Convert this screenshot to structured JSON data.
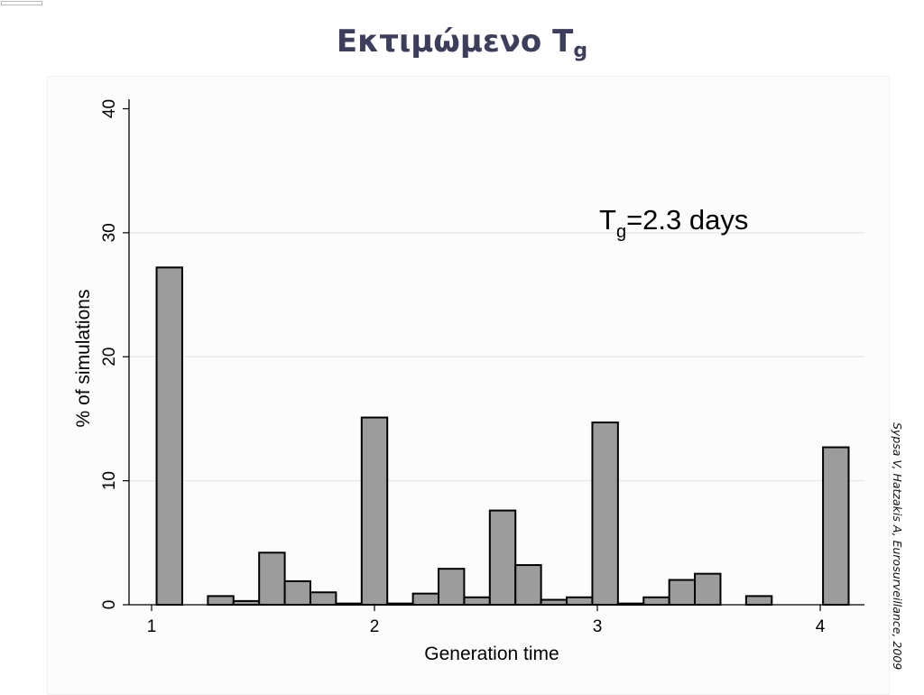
{
  "slide": {
    "title_main": "Εκτιμώμενο T",
    "title_sub": "g",
    "citation": "Sypsa V, Hatzakis A, Eurosurveillance, 2009"
  },
  "chart_data": {
    "type": "bar",
    "xlabel": "Generation time",
    "ylabel": "% of simulations",
    "ylim": [
      0,
      41
    ],
    "xlim": [
      0.95,
      4.2
    ],
    "yticks": [
      0,
      10,
      20,
      30,
      40
    ],
    "xticks": [
      1,
      2,
      3,
      4
    ],
    "gridlines": true,
    "bar_fill": "#9c9c9c",
    "bar_stroke": "#000000",
    "bin_width": 0.115,
    "annotation": {
      "main": "T",
      "sub": "g",
      "rest": "=2.3 days"
    },
    "bars": [
      {
        "x": 1.08,
        "value": 27.2
      },
      {
        "x": 1.31,
        "value": 0.7
      },
      {
        "x": 1.425,
        "value": 0.3
      },
      {
        "x": 1.54,
        "value": 4.2
      },
      {
        "x": 1.655,
        "value": 1.9
      },
      {
        "x": 1.77,
        "value": 1.0
      },
      {
        "x": 1.885,
        "value": 0.1
      },
      {
        "x": 2.0,
        "value": 15.1
      },
      {
        "x": 2.115,
        "value": 0.1
      },
      {
        "x": 2.23,
        "value": 0.9
      },
      {
        "x": 2.345,
        "value": 2.9
      },
      {
        "x": 2.46,
        "value": 0.6
      },
      {
        "x": 2.575,
        "value": 7.6
      },
      {
        "x": 2.69,
        "value": 3.2
      },
      {
        "x": 2.805,
        "value": 0.4
      },
      {
        "x": 2.92,
        "value": 0.6
      },
      {
        "x": 3.035,
        "value": 14.7
      },
      {
        "x": 3.15,
        "value": 0.1
      },
      {
        "x": 3.265,
        "value": 0.6
      },
      {
        "x": 3.38,
        "value": 2.0
      },
      {
        "x": 3.495,
        "value": 2.5
      },
      {
        "x": 3.725,
        "value": 0.7
      },
      {
        "x": 4.07,
        "value": 12.7
      }
    ]
  }
}
